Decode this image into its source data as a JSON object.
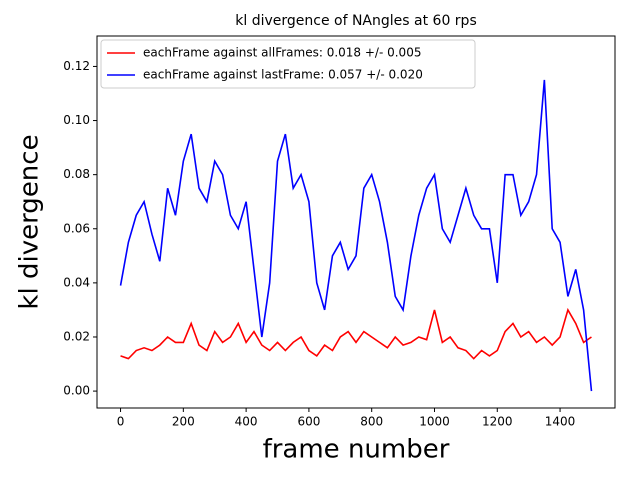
{
  "chart_data": {
    "type": "line",
    "title": "kl divergence of NAngles at 60 rps",
    "x_label": "frame number",
    "y_label": "kl divergence",
    "x": [
      0,
      25,
      50,
      75,
      100,
      125,
      150,
      175,
      200,
      225,
      250,
      275,
      300,
      325,
      350,
      375,
      400,
      425,
      450,
      475,
      500,
      525,
      550,
      575,
      600,
      625,
      650,
      675,
      700,
      725,
      750,
      775,
      800,
      825,
      850,
      875,
      900,
      925,
      950,
      975,
      1000,
      1025,
      1050,
      1075,
      1100,
      1125,
      1150,
      1175,
      1200,
      1225,
      1250,
      1275,
      1300,
      1325,
      1350,
      1375,
      1400,
      1425,
      1450,
      1475,
      1500
    ],
    "series": [
      {
        "name": "eachFrame against allFrames: 0.018 +/- 0.005",
        "color": "#ff0000",
        "values": [
          0.013,
          0.012,
          0.015,
          0.016,
          0.015,
          0.017,
          0.02,
          0.018,
          0.018,
          0.025,
          0.017,
          0.015,
          0.022,
          0.018,
          0.02,
          0.025,
          0.018,
          0.022,
          0.017,
          0.015,
          0.018,
          0.015,
          0.018,
          0.02,
          0.015,
          0.013,
          0.017,
          0.015,
          0.02,
          0.022,
          0.018,
          0.022,
          0.02,
          0.018,
          0.016,
          0.02,
          0.017,
          0.018,
          0.02,
          0.019,
          0.03,
          0.018,
          0.02,
          0.016,
          0.015,
          0.012,
          0.015,
          0.013,
          0.015,
          0.022,
          0.025,
          0.02,
          0.022,
          0.018,
          0.02,
          0.017,
          0.02,
          0.03,
          0.025,
          0.018,
          0.02
        ]
      },
      {
        "name": "eachFrame against lastFrame: 0.057 +/- 0.020",
        "color": "#0000ff",
        "values": [
          0.039,
          0.055,
          0.065,
          0.07,
          0.058,
          0.048,
          0.075,
          0.065,
          0.085,
          0.095,
          0.075,
          0.07,
          0.085,
          0.08,
          0.065,
          0.06,
          0.07,
          0.045,
          0.02,
          0.04,
          0.085,
          0.095,
          0.075,
          0.08,
          0.07,
          0.04,
          0.03,
          0.05,
          0.055,
          0.045,
          0.05,
          0.075,
          0.08,
          0.07,
          0.055,
          0.035,
          0.03,
          0.05,
          0.065,
          0.075,
          0.08,
          0.06,
          0.055,
          0.065,
          0.075,
          0.065,
          0.06,
          0.06,
          0.04,
          0.08,
          0.08,
          0.065,
          0.07,
          0.08,
          0.115,
          0.06,
          0.055,
          0.035,
          0.045,
          0.03,
          0.0
        ]
      }
    ],
    "xlim": [
      -75,
      1575
    ],
    "ylim": [
      -0.00625,
      0.13125
    ],
    "xticks": [
      0,
      200,
      400,
      600,
      800,
      1000,
      1200,
      1400
    ],
    "yticks": [
      {
        "value": 0,
        "label": "0.00"
      },
      {
        "value": 0.02,
        "label": "0.02"
      },
      {
        "value": 0.04,
        "label": "0.04"
      },
      {
        "value": 0.06,
        "label": "0.06"
      },
      {
        "value": 0.08,
        "label": "0.08"
      },
      {
        "value": 0.1,
        "label": "0.10"
      },
      {
        "value": 0.12,
        "label": "0.12"
      }
    ],
    "legend": "upper left"
  }
}
